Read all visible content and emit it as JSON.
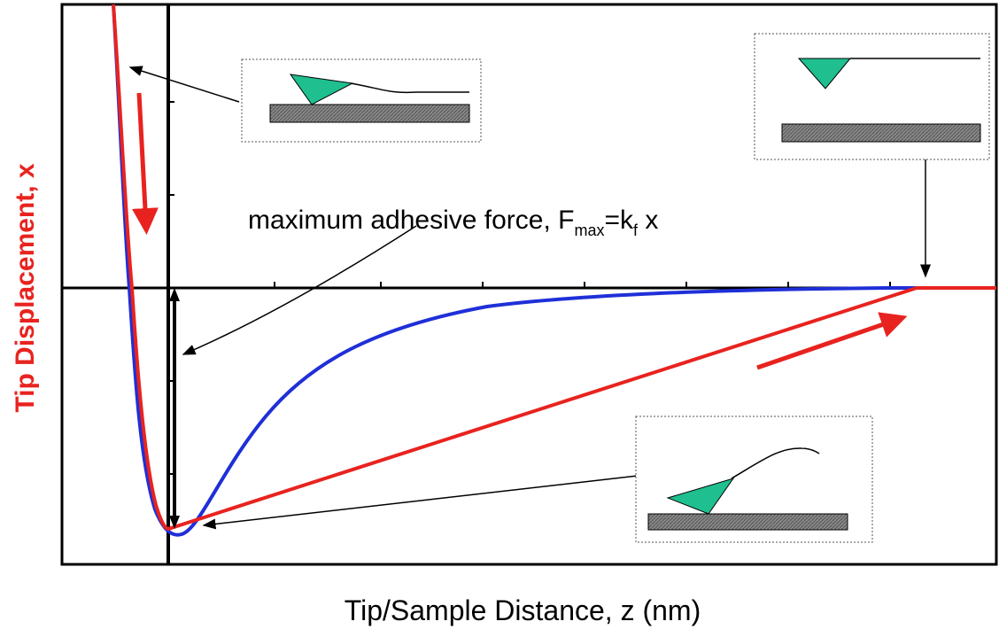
{
  "y_axis_label": "Tip Displacement, x",
  "x_axis_label": "Tip/Sample Distance, z (nm)",
  "annotation": {
    "main": "maximum adhesive force, F",
    "sub1": "max",
    "mid": "=k",
    "sub2": "f",
    "end": " x"
  }
}
